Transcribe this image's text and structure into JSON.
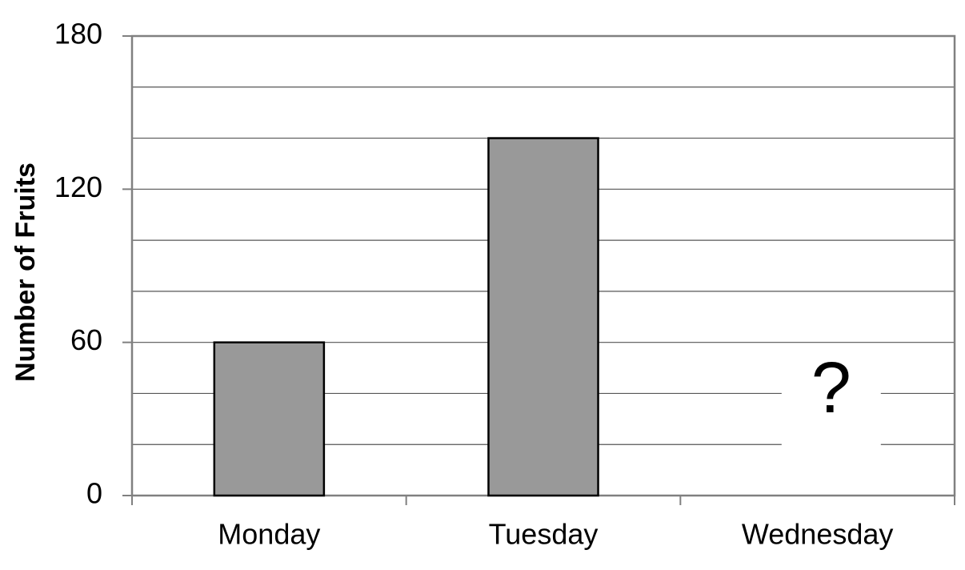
{
  "chart_data": {
    "type": "bar",
    "y_label": "Number of Fruits",
    "categories": [
      "Monday",
      "Tuesday",
      "Wednesday"
    ],
    "values": [
      60,
      140,
      null
    ],
    "color": "#999999",
    "annotation": "?",
    "ylim": [
      0,
      180
    ],
    "yticks": [
      0,
      60,
      120,
      180
    ],
    "minor_yticks": [
      20,
      40,
      80,
      100,
      140,
      160
    ],
    "grid": true
  }
}
